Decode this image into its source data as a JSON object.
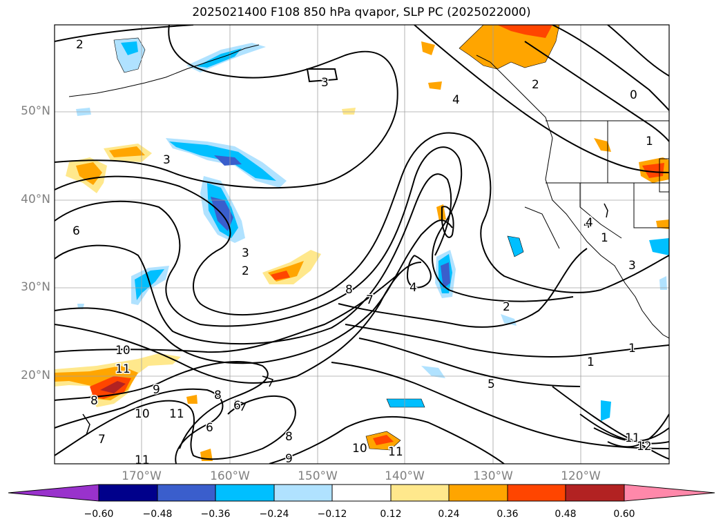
{
  "title": "2025021400 F108 850 hPa qvapor, SLP PC (2025022000)",
  "lat_labels": [
    "50°N",
    "40°N",
    "30°N",
    "20°N"
  ],
  "lon_labels": [
    "170°W",
    "160°W",
    "150°W",
    "140°W",
    "130°W",
    "120°W"
  ],
  "colorbar": {
    "ticks": [
      "−0.60",
      "−0.48",
      "−0.36",
      "−0.24",
      "−0.12",
      "0.12",
      "0.24",
      "0.36",
      "0.48",
      "0.60"
    ],
    "colors": [
      "#9932cc",
      "#00008b",
      "#3a5ecc",
      "#00bfff",
      "#b0e2ff",
      "#ffffff",
      "#ffe88c",
      "#ffa500",
      "#ff4500",
      "#b22222",
      "#ff88aa"
    ]
  },
  "contour_labels": [
    "2",
    "3",
    "4",
    "2",
    "0",
    "1",
    "3",
    "6",
    "3",
    "2",
    "1",
    "4",
    "8",
    "7",
    "4",
    "2",
    "1",
    "1",
    "10",
    "11",
    "9",
    "8",
    "10",
    "11",
    "7",
    "6",
    "8",
    "6",
    "8",
    "9",
    "10",
    "11",
    "11",
    "5",
    "11",
    "12",
    "4",
    "3"
  ]
}
